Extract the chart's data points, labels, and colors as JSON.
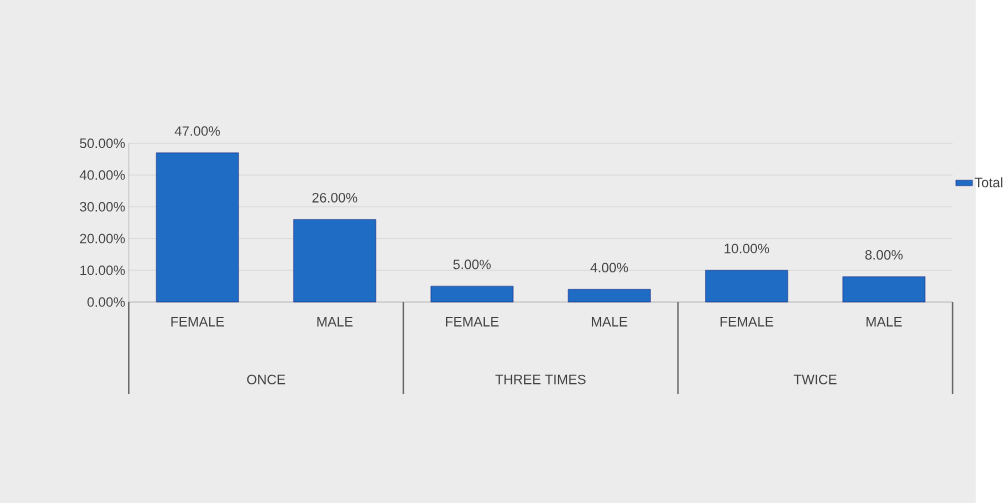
{
  "chart_data": {
    "type": "bar",
    "categories": [
      "FEMALE",
      "MALE",
      "FEMALE",
      "MALE",
      "FEMALE",
      "MALE"
    ],
    "series": [
      {
        "name": "Total",
        "color": "#1f6cc4",
        "values": [
          47,
          26,
          5,
          4,
          10,
          8
        ],
        "value_labels": [
          "47.00%",
          "26.00%",
          "5.00%",
          "4.00%",
          "10.00%",
          "8.00%"
        ]
      }
    ],
    "annotations": [
      "ONCE",
      "THREE TIMES",
      "TWICE"
    ],
    "ylim": [
      0,
      50
    ],
    "yticks": [
      {
        "value": 0,
        "label": "0.00%"
      },
      {
        "value": 10,
        "label": "10.00%"
      },
      {
        "value": 20,
        "label": "20.00%"
      },
      {
        "value": 30,
        "label": "30.00%"
      },
      {
        "value": 40,
        "label": "40.00%"
      },
      {
        "value": 50,
        "label": "50.00%"
      }
    ],
    "grid": "y",
    "legend": "right"
  }
}
